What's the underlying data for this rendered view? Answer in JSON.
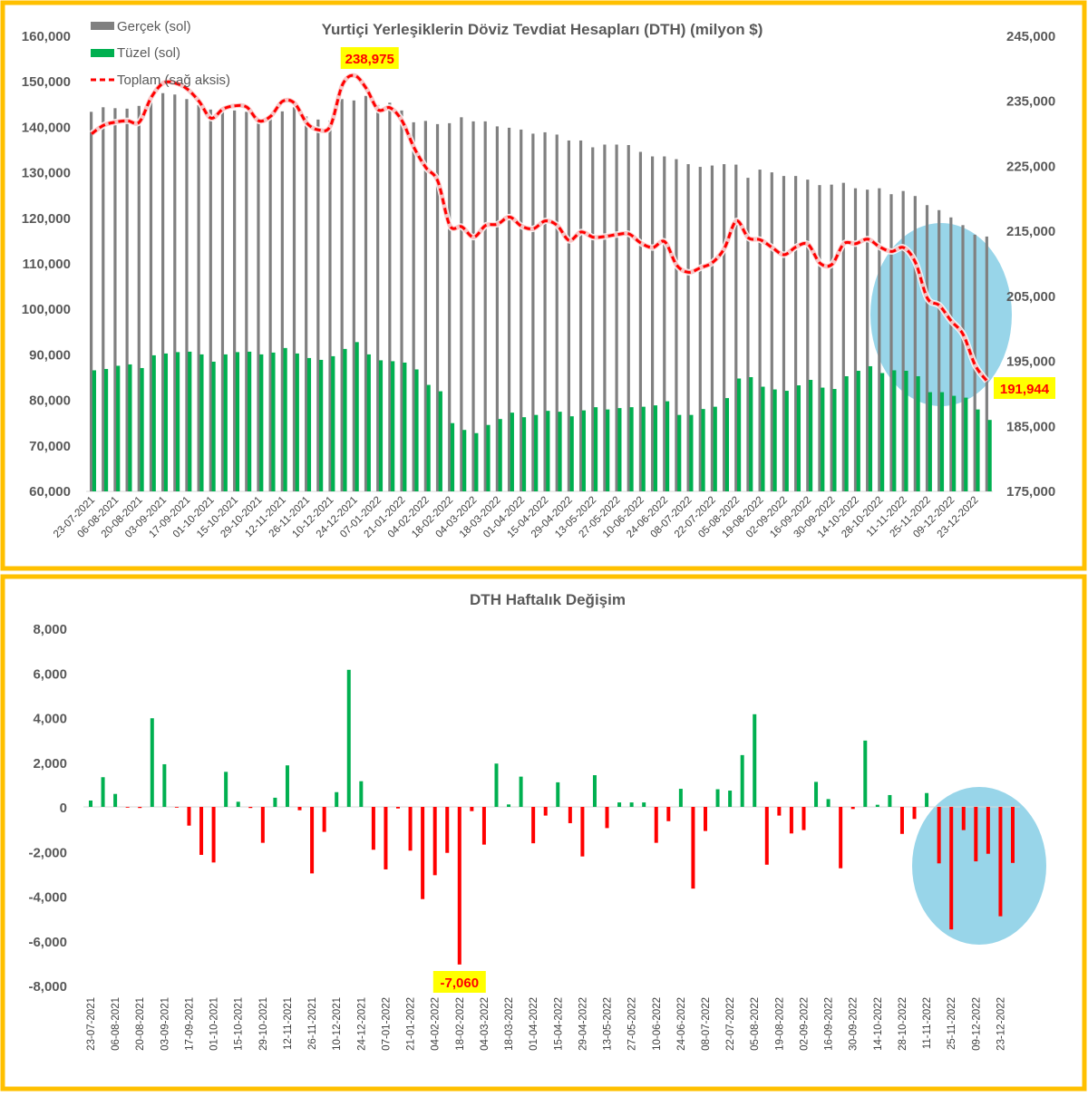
{
  "chart_data": [
    {
      "type": "bar+line",
      "title": "Yurtiçi Yerleşiklerin Döviz Tevdiat Hesapları (DTH) (milyon $)",
      "legend": [
        "Gerçek (sol)",
        "Tüzel (sol)",
        "Toplam (sağ aksis)"
      ],
      "legend_position": "top-left",
      "x_tick_labels": [
        "23-07-2021",
        "06-08-2021",
        "20-08-2021",
        "03-09-2021",
        "17-09-2021",
        "01-10-2021",
        "15-10-2021",
        "29-10-2021",
        "12-11-2021",
        "26-11-2021",
        "10-12-2021",
        "24-12-2021",
        "07-01-2022",
        "21-01-2022",
        "04-02-2022",
        "18-02-2022",
        "04-03-2022",
        "18-03-2022",
        "01-04-2022",
        "15-04-2022",
        "29-04-2022",
        "13-05-2022",
        "27-05-2022",
        "10-06-2022",
        "24-06-2022",
        "08-07-2022",
        "22-07-2022",
        "05-08-2022",
        "19-08-2022",
        "02-09-2022",
        "16-09-2022",
        "30-09-2022",
        "14-10-2022",
        "28-10-2022",
        "11-11-2022",
        "25-11-2022",
        "09-12-2022",
        "23-12-2022"
      ],
      "tick_every_n_weeks": 2,
      "y_left": {
        "min": 60000,
        "max": 160000,
        "step": 10000,
        "tick_labels": [
          "160,000",
          "150,000",
          "140,000",
          "130,000",
          "120,000",
          "110,000",
          "100,000",
          "90,000",
          "80,000",
          "70,000",
          "60,000"
        ]
      },
      "y_right": {
        "min": 175000,
        "max": 245000,
        "step": 10000,
        "tick_labels": [
          "245,000",
          "235,000",
          "225,000",
          "215,000",
          "205,000",
          "195,000",
          "185,000",
          "175,000"
        ]
      },
      "series": [
        {
          "name": "Gerçek (sol)",
          "axis": "left",
          "type": "bar",
          "color": "#808080",
          "values": [
            143400,
            144400,
            144200,
            144100,
            144700,
            145700,
            147500,
            147200,
            146200,
            144900,
            143900,
            143700,
            143700,
            143400,
            141900,
            142200,
            143500,
            144400,
            142400,
            141700,
            141500,
            146200,
            145900,
            146900,
            144900,
            145400,
            143700,
            141100,
            141400,
            140700,
            140900,
            142200,
            141300,
            141300,
            140200,
            139900,
            139500,
            138600,
            138900,
            138400,
            137100,
            137100,
            135600,
            136200,
            136200,
            136100,
            134600,
            133600,
            133600,
            133000,
            131900,
            131300,
            131600,
            131900,
            131800,
            128900,
            130700,
            130100,
            129300,
            129300,
            128500,
            127300,
            127400,
            127800,
            126600,
            126300,
            126600,
            125300,
            126000,
            124900,
            122900,
            121800,
            120200,
            118500,
            116400,
            116000
          ]
        },
        {
          "name": "Tüzel (sol)",
          "axis": "left",
          "type": "bar",
          "color": "#00b050",
          "values": [
            86600,
            86900,
            87600,
            87900,
            87100,
            89900,
            90300,
            90600,
            90700,
            90100,
            88500,
            90100,
            90600,
            90700,
            90100,
            90500,
            91500,
            90300,
            89300,
            88900,
            89700,
            91300,
            92800,
            90100,
            88800,
            88600,
            88300,
            86800,
            83400,
            82000,
            75000,
            73500,
            72800,
            74600,
            75900,
            77300,
            76300,
            76800,
            77700,
            77500,
            76500,
            77800,
            78500,
            78000,
            78300,
            78500,
            78600,
            78900,
            79800,
            76800,
            76800,
            78100,
            78600,
            80500,
            84800,
            85100,
            83000,
            82400,
            82100,
            83300,
            84500,
            82800,
            82500,
            85300,
            86500,
            87500,
            86000,
            86600,
            86500,
            85300,
            81800,
            81800,
            81000,
            80600,
            78000,
            75700
          ]
        },
        {
          "name": "Toplam (sağ aksis)",
          "axis": "right",
          "type": "line",
          "color": "#ff0000",
          "values": [
            230000,
            231300,
            231800,
            232000,
            231800,
            235600,
            237800,
            237800,
            236900,
            235000,
            232400,
            233800,
            234300,
            234100,
            232000,
            232700,
            235000,
            234700,
            231700,
            230600,
            231200,
            237500,
            238975,
            237000,
            233700,
            234000,
            232000,
            227900,
            224800,
            222700,
            215900,
            215700,
            214100,
            215900,
            216100,
            217200,
            215800,
            215400,
            216600,
            215900,
            213600,
            214900,
            214100,
            214200,
            214500,
            214600,
            213200,
            212500,
            213400,
            209800,
            208700,
            209400,
            210200,
            212400,
            216600,
            214000,
            213700,
            212500,
            211400,
            212600,
            213000,
            210100,
            209900,
            213100,
            213100,
            213800,
            212600,
            211900,
            212500,
            210200,
            204700,
            203600,
            201200,
            199100,
            194400,
            191944
          ]
        }
      ],
      "annotations": {
        "peak_label": "238,975",
        "peak_index": 22,
        "last_label": "191,944",
        "last_index": 75
      },
      "highlight_color": "#92d3e8"
    },
    {
      "type": "bar",
      "title": "DTH Haftalık Değişim",
      "x_tick_labels": [
        "23-07-2021",
        "06-08-2021",
        "20-08-2021",
        "03-09-2021",
        "17-09-2021",
        "01-10-2021",
        "15-10-2021",
        "29-10-2021",
        "12-11-2021",
        "26-11-2021",
        "10-12-2021",
        "24-12-2021",
        "07-01-2022",
        "21-01-2022",
        "04-02-2022",
        "18-02-2022",
        "04-03-2022",
        "18-03-2022",
        "01-04-2022",
        "15-04-2022",
        "29-04-2022",
        "13-05-2022",
        "27-05-2022",
        "10-06-2022",
        "24-06-2022",
        "08-07-2022",
        "22-07-2022",
        "05-08-2022",
        "19-08-2022",
        "02-09-2022",
        "16-09-2022",
        "30-09-2022",
        "14-10-2022",
        "28-10-2022",
        "11-11-2022",
        "25-11-2022",
        "09-12-2022",
        "23-12-2022"
      ],
      "y": {
        "min": -8000,
        "max": 8000,
        "step": 2000,
        "tick_labels": [
          "8,000",
          "6,000",
          "4,000",
          "2,000",
          "0",
          "-2,000",
          "-4,000",
          "-6,000",
          "-8,000"
        ]
      },
      "positive_color": "#00b050",
      "negative_color": "#ff0000",
      "values": [
        285,
        1330,
        580,
        -10,
        -50,
        3970,
        1910,
        -10,
        -840,
        -2150,
        -2490,
        1570,
        230,
        -50,
        -1610,
        410,
        1860,
        -150,
        -2980,
        -1120,
        660,
        6140,
        1150,
        -1920,
        -2800,
        -70,
        -1960,
        -4130,
        -3060,
        -2060,
        -7060,
        -190,
        -1690,
        1940,
        110,
        1355,
        -1630,
        -390,
        1100,
        -730,
        -2220,
        1420,
        -950,
        200,
        200,
        200,
        -1610,
        -640,
        810,
        -3660,
        -1080,
        790,
        730,
        2320,
        4150,
        -2590,
        -390,
        -1190,
        -1040,
        1120,
        350,
        -2750,
        -95,
        2970,
        95,
        530,
        -1210,
        -540,
        620,
        -2530,
        -5490,
        -1040,
        -2440,
        -2100,
        -4900,
        -2510
      ],
      "annotations": {
        "min_label": "-7,060",
        "min_index": 30
      }
    }
  ]
}
